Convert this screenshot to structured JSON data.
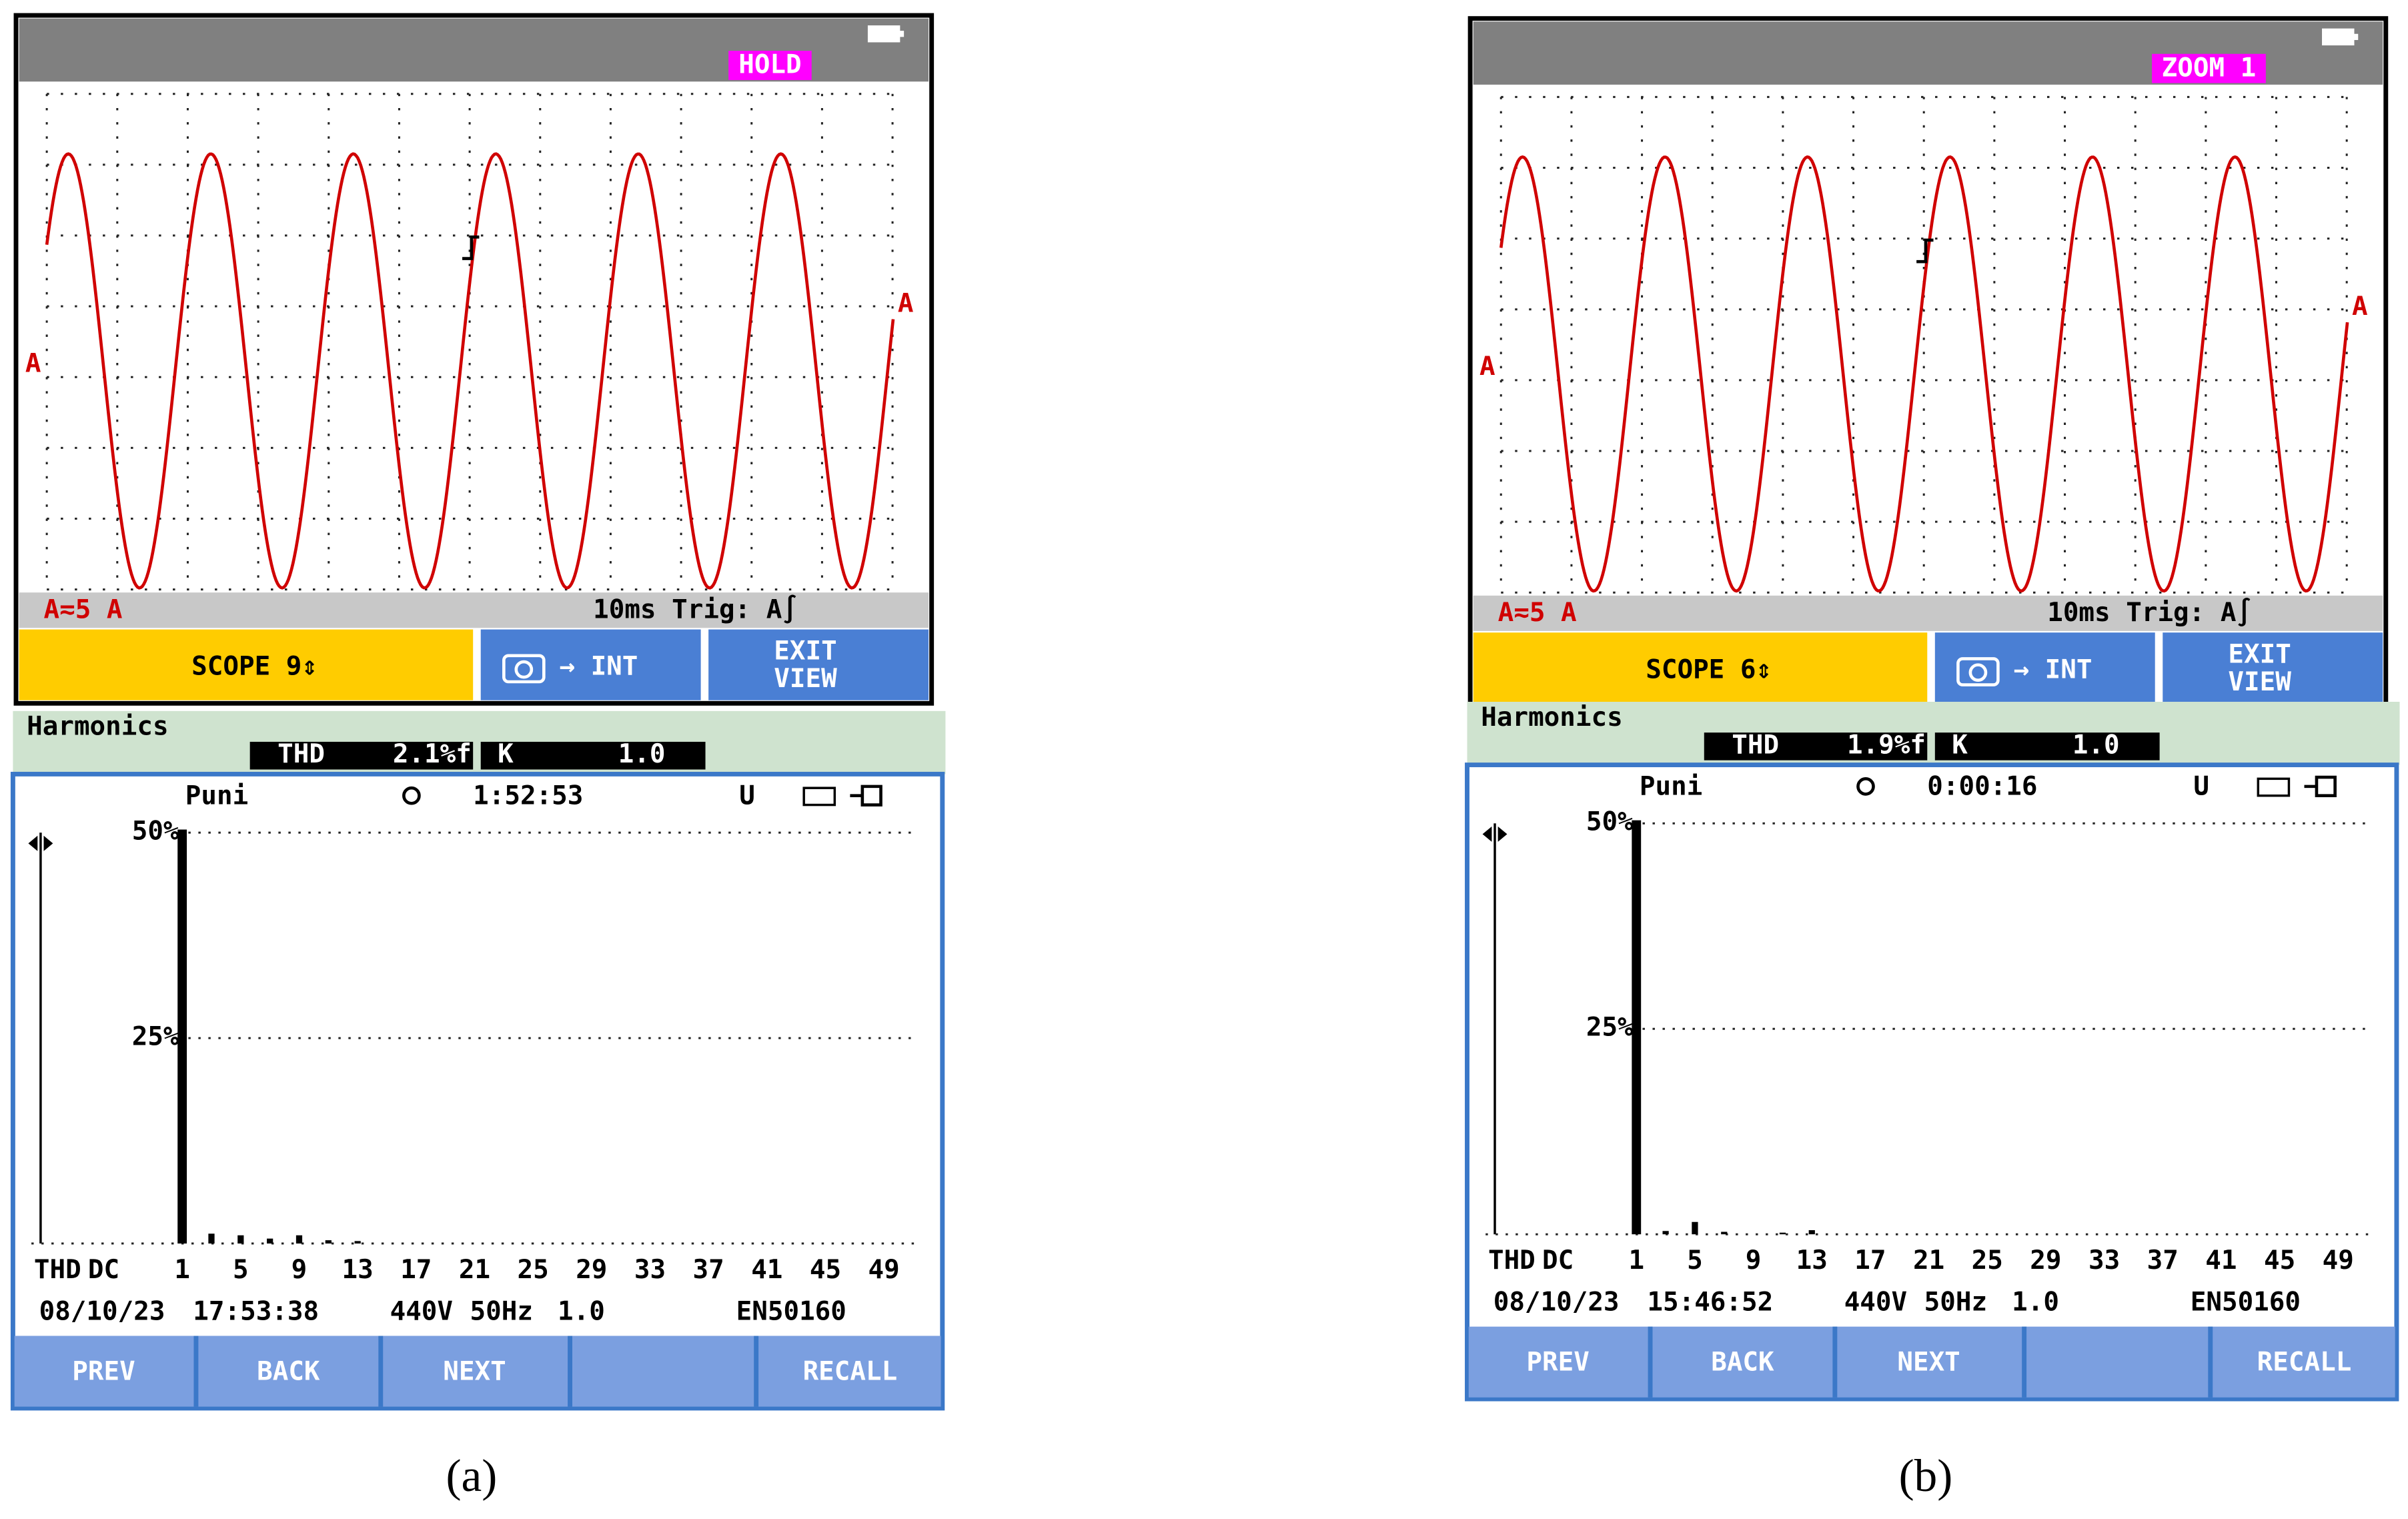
{
  "panels": [
    {
      "caption": "(a)",
      "scope": {
        "mode": "HOLD",
        "marker_left": "A",
        "marker_right": "A",
        "range": "A≂5 A",
        "timebase": "10ms Trig: A∫",
        "buttons": [
          "SCOPE 9⇕",
          "→ INT",
          "EXIT",
          "VIEW"
        ]
      },
      "harmonics": {
        "title": "Harmonics",
        "thd_label": "THD",
        "thd_value": "2.1%f",
        "k_label": "K",
        "k_value": "1.0",
        "mode": "Puni",
        "timer": "1:52:53",
        "status": "U",
        "ylim": [
          0,
          50
        ],
        "yticks": [
          {
            "value": 50,
            "label": "50%"
          },
          {
            "value": 25,
            "label": "25%"
          }
        ],
        "x_labels": [
          "THD",
          "DC",
          "1",
          "5",
          "9",
          "13",
          "17",
          "21",
          "25",
          "29",
          "33",
          "37",
          "41",
          "45",
          "49"
        ],
        "bar_orders": [
          1,
          3,
          5,
          7,
          9,
          11,
          13
        ],
        "bar_values": [
          100,
          1.2,
          1.0,
          0.6,
          1.0,
          0.4,
          0.3
        ],
        "footer": [
          "08/10/23",
          "17:53:38",
          "440V",
          "50Hz",
          "1.0",
          "EN50160"
        ],
        "buttons": [
          "PREV",
          "BACK",
          "NEXT",
          "RECALL"
        ]
      }
    },
    {
      "caption": "(b)",
      "scope": {
        "mode": "ZOOM 1",
        "marker_left": "A",
        "marker_right": "A",
        "range": "A≂5 A",
        "timebase": "10ms Trig: A∫",
        "buttons": [
          "SCOPE 6⇕",
          "→ INT",
          "EXIT",
          "VIEW"
        ]
      },
      "harmonics": {
        "title": "Harmonics",
        "thd_label": "THD",
        "thd_value": "1.9%f",
        "k_label": "K",
        "k_value": "1.0",
        "mode": "Puni",
        "timer": "0:00:16",
        "status": "U",
        "ylim": [
          0,
          50
        ],
        "yticks": [
          {
            "value": 50,
            "label": "50%"
          },
          {
            "value": 25,
            "label": "25%"
          }
        ],
        "x_labels": [
          "THD",
          "DC",
          "1",
          "5",
          "9",
          "13",
          "17",
          "21",
          "25",
          "29",
          "33",
          "37",
          "41",
          "45",
          "49"
        ],
        "bar_orders": [
          1,
          3,
          5,
          7,
          11,
          13
        ],
        "bar_values": [
          100,
          0.4,
          1.5,
          0.3,
          0.2,
          0.5
        ],
        "footer": [
          "08/10/23",
          "15:46:52",
          "440V",
          "50Hz",
          "1.0",
          "EN50160"
        ],
        "buttons": [
          "PREV",
          "BACK",
          "NEXT",
          "RECALL"
        ]
      }
    }
  ]
}
